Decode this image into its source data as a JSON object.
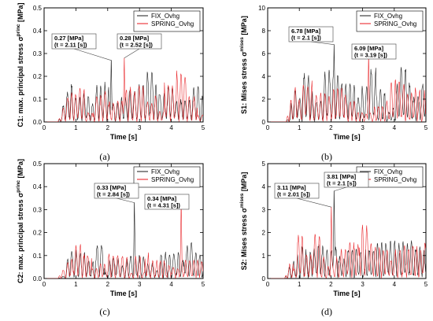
{
  "colors": {
    "fix": "#1a1a1a",
    "spring": "#e8161b",
    "annotation_box": "#ffffff"
  },
  "chart_data": [
    {
      "type": "line",
      "caption": "(a)",
      "ylabel": "C1: max. principal stress",
      "ylabel_symbol": "σ",
      "ylabel_sup": "princ",
      "ylabel_unit": "[MPa]",
      "xlabel": "Time [s]",
      "xlim": [
        0,
        5
      ],
      "ylim": [
        0,
        0.5
      ],
      "xticks": [
        "0",
        "1",
        "2",
        "3",
        "4",
        "5"
      ],
      "yticks": [
        "0.0",
        "0.1",
        "0.2",
        "0.3",
        "0.4",
        "0.5"
      ],
      "legend": {
        "position": "top-right",
        "entries": [
          "FIX_Ovhg",
          "SPRING_Ovhg"
        ]
      },
      "series": [
        {
          "name": "FIX_Ovhg",
          "color": "#1a1a1a",
          "peak": 0.27,
          "peak_t": 2.11,
          "seed": 11
        },
        {
          "name": "SPRING_Ovhg",
          "color": "#e8161b",
          "peak": 0.28,
          "peak_t": 2.52,
          "seed": 23
        }
      ],
      "annotations": [
        {
          "line1": "0.27 [MPa]",
          "line2": "(t = 2.11 [s])",
          "x": 2.11,
          "y": 0.27
        },
        {
          "line1": "0.28 [MPa]",
          "line2": "(t = 2.52 [s])",
          "x": 2.52,
          "y": 0.28
        }
      ],
      "start_t": 0.45,
      "base": 0.1,
      "amp": 0.12
    },
    {
      "type": "line",
      "caption": "(b)",
      "ylabel": "S1: Mises stress",
      "ylabel_symbol": "σ",
      "ylabel_sup": "mises",
      "ylabel_unit": "[MPa]",
      "xlabel": "Time [s]",
      "xlim": [
        0,
        5
      ],
      "ylim": [
        0,
        10
      ],
      "xticks": [
        "0",
        "1",
        "2",
        "3",
        "4",
        "5"
      ],
      "yticks": [
        "0",
        "2",
        "4",
        "6",
        "8",
        "10"
      ],
      "legend": {
        "position": "top-right",
        "entries": [
          "FIX_Ovhg",
          "SPRING_Ovhg"
        ]
      },
      "series": [
        {
          "name": "FIX_Ovhg",
          "color": "#1a1a1a",
          "peak": 6.78,
          "peak_t": 2.1,
          "seed": 37
        },
        {
          "name": "SPRING_Ovhg",
          "color": "#e8161b",
          "peak": 6.09,
          "peak_t": 3.19,
          "seed": 41
        }
      ],
      "annotations": [
        {
          "line1": "6.78 [MPa]",
          "line2": "(t = 2.1 [s])",
          "x": 2.1,
          "y": 6.78
        },
        {
          "line1": "6.09 [MPa]",
          "line2": "(t = 3.19 [s])",
          "x": 3.19,
          "y": 6.09
        }
      ],
      "start_t": 0.6,
      "base": 2.2,
      "amp": 2.2
    },
    {
      "type": "line",
      "caption": "(c)",
      "ylabel": "C2: max. principal stress",
      "ylabel_symbol": "σ",
      "ylabel_sup": "princ",
      "ylabel_unit": "[MPa]",
      "xlabel": "Time [s]",
      "xlim": [
        0,
        5
      ],
      "ylim": [
        0,
        0.5
      ],
      "xticks": [
        "0",
        "1",
        "2",
        "3",
        "4",
        "5"
      ],
      "yticks": [
        "0.0",
        "0.1",
        "0.2",
        "0.3",
        "0.4",
        "0.5"
      ],
      "legend": {
        "position": "top-right",
        "entries": [
          "FIX_Ovhg",
          "SPRING_Ovhg"
        ]
      },
      "series": [
        {
          "name": "FIX_Ovhg",
          "color": "#1a1a1a",
          "peak": 0.33,
          "peak_t": 2.84,
          "seed": 53
        },
        {
          "name": "SPRING_Ovhg",
          "color": "#e8161b",
          "peak": 0.34,
          "peak_t": 4.31,
          "seed": 67
        }
      ],
      "annotations": [
        {
          "line1": "0.33 [MPa]",
          "line2": "(t = 2.84 [s])",
          "x": 2.84,
          "y": 0.33
        },
        {
          "line1": "0.34 [MPa]",
          "line2": "(t = 4.31 [s])",
          "x": 4.31,
          "y": 0.34
        }
      ],
      "start_t": 0.45,
      "base": 0.07,
      "amp": 0.14
    },
    {
      "type": "line",
      "caption": "(d)",
      "ylabel": "S2: Mises stress",
      "ylabel_symbol": "σ",
      "ylabel_sup": "mises",
      "ylabel_unit": "[MPa]",
      "xlabel": "Time [s]",
      "xlim": [
        0,
        5
      ],
      "ylim": [
        0,
        5
      ],
      "xticks": [
        "0",
        "1",
        "2",
        "3",
        "4",
        "5"
      ],
      "yticks": [
        "0",
        "1",
        "2",
        "3",
        "4",
        "5"
      ],
      "legend": {
        "position": "top-right",
        "entries": [
          "FIX_Ovhg",
          "SPRING_Ovhg"
        ]
      },
      "series": [
        {
          "name": "FIX_Ovhg",
          "color": "#1a1a1a",
          "peak": 3.81,
          "peak_t": 2.1,
          "seed": 71
        },
        {
          "name": "SPRING_Ovhg",
          "color": "#e8161b",
          "peak": 3.11,
          "peak_t": 2.01,
          "seed": 83
        }
      ],
      "annotations": [
        {
          "line1": "3.11 [MPa]",
          "line2": "(t = 2.01 [s])",
          "x": 2.01,
          "y": 3.11
        },
        {
          "line1": "3.81 [MPa]",
          "line2": "(t = 2.1 [s])",
          "x": 2.1,
          "y": 3.81
        }
      ],
      "start_t": 0.55,
      "base": 1.0,
      "amp": 1.1
    }
  ]
}
